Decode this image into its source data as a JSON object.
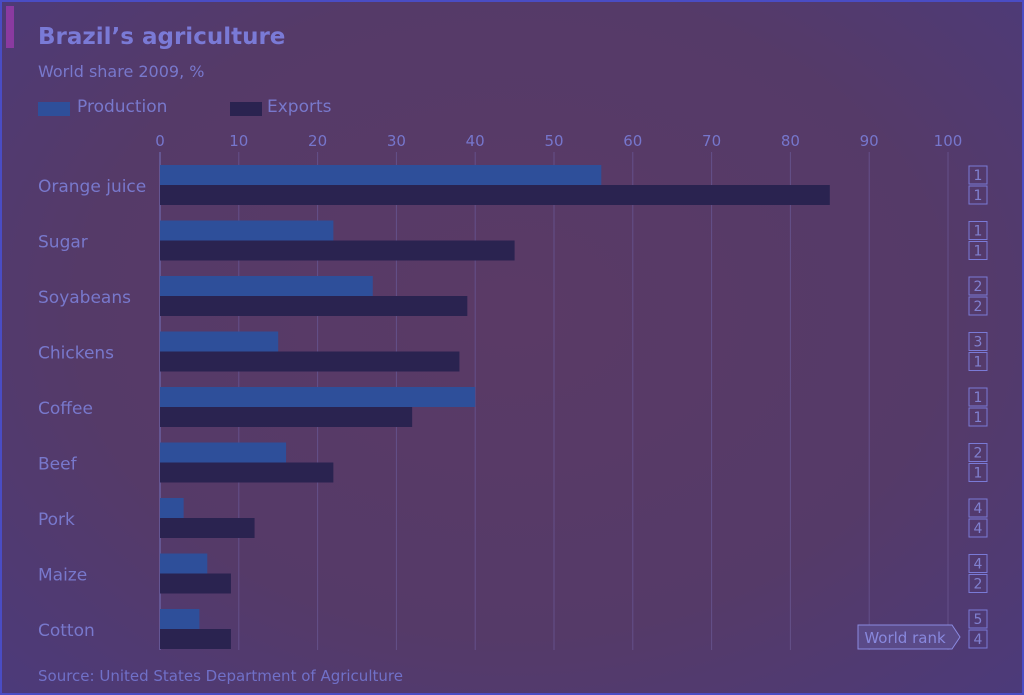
{
  "title": "Brazil’s agriculture",
  "subtitle": "World share 2009, %",
  "source": "Source: United States Department of Agriculture",
  "world_rank_label": "World rank",
  "colors": {
    "production": "#2e4f9a",
    "exports": "#2a2350"
  },
  "chart_data": {
    "type": "bar",
    "orientation": "horizontal",
    "title": "Brazil’s agriculture",
    "subtitle": "World share 2009, %",
    "categories": [
      "Orange juice",
      "Sugar",
      "Soyabeans",
      "Chickens",
      "Coffee",
      "Beef",
      "Pork",
      "Maize",
      "Cotton"
    ],
    "series": [
      {
        "name": "Production",
        "values": [
          56,
          22,
          27,
          15,
          40,
          16,
          3,
          6,
          5
        ]
      },
      {
        "name": "Exports",
        "values": [
          85,
          45,
          39,
          38,
          32,
          22,
          12,
          9,
          9
        ]
      }
    ],
    "world_rank": {
      "Production": [
        1,
        1,
        2,
        3,
        1,
        2,
        4,
        4,
        5
      ],
      "Exports": [
        1,
        1,
        2,
        1,
        1,
        1,
        4,
        2,
        4
      ]
    },
    "xlim": [
      0,
      100
    ],
    "xticks": [
      0,
      10,
      20,
      30,
      40,
      50,
      60,
      70,
      80,
      90,
      100
    ],
    "grid": true,
    "legend_position": "top-left"
  }
}
